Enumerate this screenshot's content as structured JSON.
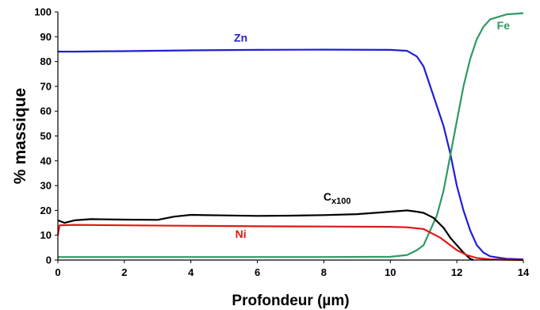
{
  "chart_data": {
    "type": "line",
    "title": "",
    "xlabel": "Profondeur (µm)",
    "ylabel": "% massique",
    "xlim": [
      0,
      14
    ],
    "ylim": [
      0,
      100
    ],
    "x_ticks": [
      "0",
      "2",
      "4",
      "6",
      "8",
      "10",
      "12",
      "14"
    ],
    "y_ticks": [
      "0",
      "10",
      "20",
      "30",
      "40",
      "50",
      "60",
      "70",
      "80",
      "90",
      "100"
    ],
    "grid": false,
    "legend": "none",
    "series": [
      {
        "name": "Zn",
        "color": "#1f1fd6",
        "points": [
          [
            0,
            84
          ],
          [
            0.5,
            84
          ],
          [
            2,
            84.2
          ],
          [
            4,
            84.5
          ],
          [
            6,
            84.7
          ],
          [
            8,
            84.8
          ],
          [
            10,
            84.7
          ],
          [
            10.5,
            84.3
          ],
          [
            10.8,
            82
          ],
          [
            11,
            78
          ],
          [
            11.2,
            70
          ],
          [
            11.4,
            62
          ],
          [
            11.6,
            54
          ],
          [
            11.8,
            43
          ],
          [
            12,
            30
          ],
          [
            12.2,
            20
          ],
          [
            12.4,
            12
          ],
          [
            12.6,
            6
          ],
          [
            12.8,
            3
          ],
          [
            13,
            1.5
          ],
          [
            13.5,
            0.5
          ],
          [
            14,
            0.3
          ]
        ]
      },
      {
        "name": "Fe",
        "color": "#2e9a62",
        "points": [
          [
            0,
            1.2
          ],
          [
            2,
            1.2
          ],
          [
            4,
            1.2
          ],
          [
            6,
            1.2
          ],
          [
            8,
            1.2
          ],
          [
            10,
            1.3
          ],
          [
            10.5,
            2
          ],
          [
            10.8,
            4
          ],
          [
            11,
            6
          ],
          [
            11.2,
            12
          ],
          [
            11.4,
            18
          ],
          [
            11.6,
            28
          ],
          [
            11.8,
            42
          ],
          [
            12,
            56
          ],
          [
            12.2,
            70
          ],
          [
            12.4,
            81
          ],
          [
            12.6,
            89
          ],
          [
            12.8,
            94
          ],
          [
            13,
            97
          ],
          [
            13.5,
            99
          ],
          [
            14,
            99.5
          ]
        ]
      },
      {
        "name": "Cx100",
        "color": "#000000",
        "points": [
          [
            0,
            16
          ],
          [
            0.2,
            15
          ],
          [
            0.5,
            16
          ],
          [
            1,
            16.5
          ],
          [
            2,
            16.3
          ],
          [
            3,
            16.2
          ],
          [
            3.5,
            17.5
          ],
          [
            4,
            18.2
          ],
          [
            5,
            18
          ],
          [
            6,
            17.8
          ],
          [
            7,
            17.9
          ],
          [
            8,
            18.1
          ],
          [
            9,
            18.5
          ],
          [
            10,
            19.5
          ],
          [
            10.5,
            20
          ],
          [
            10.8,
            19.5
          ],
          [
            11,
            19
          ],
          [
            11.3,
            17
          ],
          [
            11.6,
            13
          ],
          [
            11.8,
            9
          ],
          [
            12,
            6
          ],
          [
            12.2,
            3
          ],
          [
            12.4,
            0.5
          ],
          [
            12.5,
            0
          ]
        ]
      },
      {
        "name": "Ni",
        "color": "#e01818",
        "points": [
          [
            0,
            10
          ],
          [
            0.05,
            14
          ],
          [
            0.5,
            14.2
          ],
          [
            2,
            14
          ],
          [
            4,
            13.8
          ],
          [
            6,
            13.6
          ],
          [
            8,
            13.5
          ],
          [
            10,
            13.4
          ],
          [
            10.5,
            13.2
          ],
          [
            11,
            12.5
          ],
          [
            11.5,
            9
          ],
          [
            11.8,
            6
          ],
          [
            12,
            4
          ],
          [
            12.3,
            2
          ],
          [
            12.6,
            0.8
          ],
          [
            13,
            0.3
          ],
          [
            14,
            0
          ]
        ]
      }
    ],
    "annotations": [
      {
        "text": "Zn",
        "series": "Zn",
        "x": 5.5,
        "y": 88
      },
      {
        "text": "Fe",
        "series": "Fe",
        "x": 13.4,
        "y": 93
      },
      {
        "text": "C",
        "sub": "x100",
        "series": "Cx100",
        "x": 8.4,
        "y": 24
      },
      {
        "text": "Ni",
        "series": "Ni",
        "x": 5.5,
        "y": 9
      }
    ]
  }
}
